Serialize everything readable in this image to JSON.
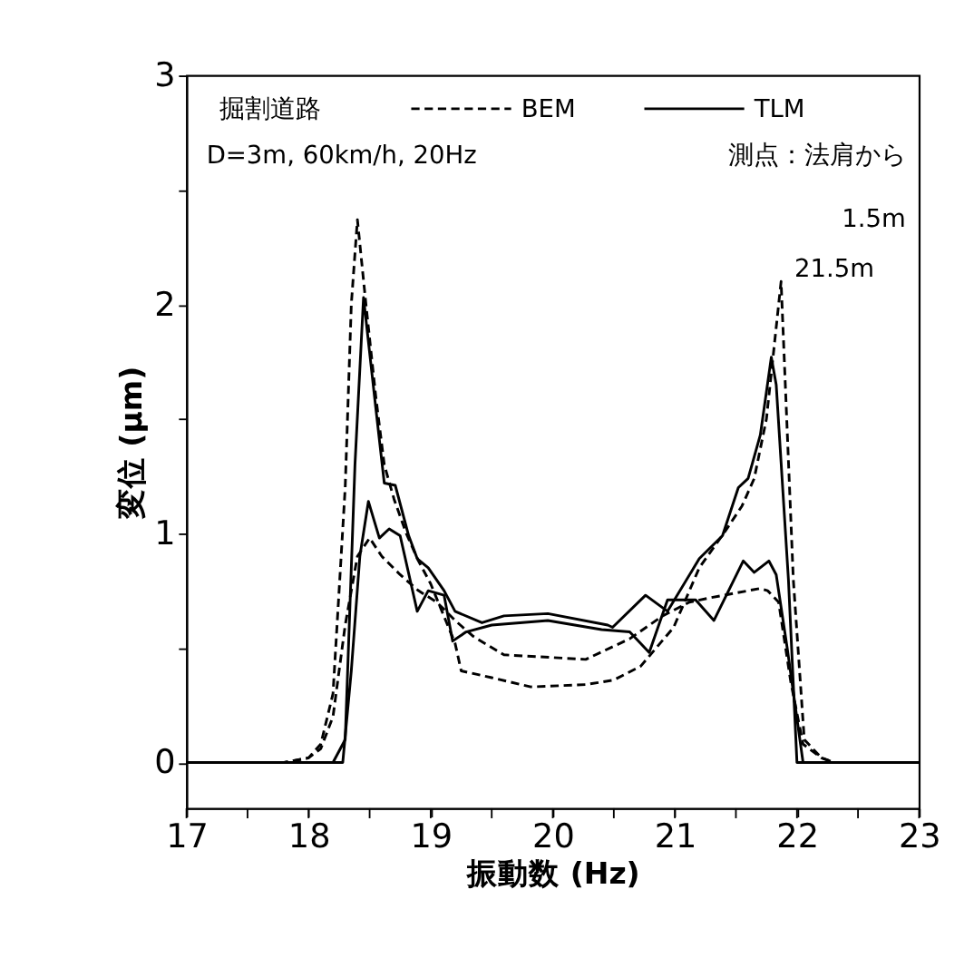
{
  "chart_data": {
    "type": "line",
    "xlabel": "振動数 (Hz)",
    "ylabel": "変位 (μm)",
    "legend_title": "掘割道路",
    "annotations": [
      "D=3m, 60km/h, 20Hz",
      "測点：法肩から",
      "1.5m",
      {
        "text": "21.5m",
        "x": 21.87,
        "y": 2.1
      }
    ],
    "xlim": [
      17,
      23
    ],
    "ylim": [
      -0.2,
      3
    ],
    "xticks": [
      17,
      {
        "value": 17.5,
        "label": null
      },
      18,
      {
        "value": 18.5,
        "label": null
      },
      19,
      {
        "value": 19.5,
        "label": null
      },
      20,
      {
        "value": 20.5,
        "label": null
      },
      21,
      {
        "value": 21.5,
        "label": null
      },
      22,
      {
        "value": 22.5,
        "label": null
      },
      23
    ],
    "yticks": [
      0,
      {
        "value": 0.5,
        "label": null
      },
      1,
      {
        "value": 1.5,
        "label": null
      },
      2,
      {
        "value": 2.5,
        "label": null
      },
      3
    ],
    "grid": false,
    "legend": "top",
    "marker": "none",
    "series": [
      {
        "name": "BEM",
        "color": "#000000",
        "line_style": "dashed",
        "x": [
          17,
          17.8,
          18.0,
          18.1,
          18.2,
          18.3,
          18.35,
          18.4,
          18.47,
          18.55,
          18.62,
          18.7,
          18.8,
          18.9,
          19.0,
          19.1,
          19.2,
          19.25,
          19.5,
          19.82,
          20.27,
          20.5,
          20.72,
          20.99,
          21.2,
          21.4,
          21.55,
          21.65,
          21.75,
          21.87,
          21.97,
          22.06,
          22.2,
          22.3,
          23
        ],
        "values": [
          0,
          0,
          0.02,
          0.08,
          0.3,
          1.2,
          2.0,
          2.37,
          2.0,
          1.6,
          1.3,
          1.15,
          1.0,
          0.88,
          0.78,
          0.65,
          0.52,
          0.4,
          0.37,
          0.33,
          0.34,
          0.36,
          0.42,
          0.59,
          0.85,
          1.0,
          1.12,
          1.24,
          1.5,
          2.1,
          0.8,
          0.1,
          0.02,
          0,
          0
        ]
      },
      {
        "color": "#000000",
        "line_style": "dashed",
        "x": [
          17,
          17.8,
          18.0,
          18.1,
          18.2,
          18.3,
          18.4,
          18.5,
          18.6,
          18.75,
          18.9,
          19.05,
          19.2,
          19.35,
          19.6,
          20.27,
          20.63,
          20.9,
          21.12,
          21.3,
          21.5,
          21.7,
          21.76,
          21.85,
          21.95,
          22.05,
          22.2,
          22.3,
          23
        ],
        "values": [
          0,
          0,
          0.02,
          0.06,
          0.2,
          0.6,
          0.9,
          0.98,
          0.9,
          0.82,
          0.75,
          0.7,
          0.62,
          0.55,
          0.47,
          0.45,
          0.54,
          0.64,
          0.7,
          0.72,
          0.74,
          0.76,
          0.75,
          0.7,
          0.35,
          0.08,
          0.02,
          0,
          0
        ]
      },
      {
        "name": "TLM",
        "color": "#000000",
        "line_style": "solid",
        "x": [
          17,
          18.2,
          18.3,
          18.38,
          18.45,
          18.55,
          18.62,
          18.71,
          18.82,
          18.89,
          18.98,
          19.11,
          19.2,
          19.42,
          19.6,
          19.96,
          20.45,
          20.49,
          20.76,
          20.94,
          21.2,
          21.39,
          21.52,
          21.6,
          21.7,
          21.79,
          21.83,
          21.93,
          22.0,
          23
        ],
        "values": [
          0,
          0,
          0.1,
          1.3,
          2.03,
          1.55,
          1.22,
          1.21,
          0.99,
          0.89,
          0.85,
          0.75,
          0.66,
          0.61,
          0.64,
          0.65,
          0.6,
          0.59,
          0.73,
          0.66,
          0.89,
          0.99,
          1.2,
          1.24,
          1.43,
          1.77,
          1.65,
          0.8,
          0,
          0
        ]
      },
      {
        "color": "#000000",
        "line_style": "solid",
        "x": [
          17,
          18.28,
          18.35,
          18.42,
          18.49,
          18.58,
          18.66,
          18.75,
          18.89,
          18.98,
          19.11,
          19.18,
          19.29,
          19.5,
          19.96,
          20.4,
          20.63,
          20.79,
          20.94,
          21.17,
          21.32,
          21.56,
          21.65,
          21.77,
          21.83,
          21.92,
          22.05,
          23
        ],
        "values": [
          0,
          0,
          0.4,
          0.9,
          1.14,
          0.98,
          1.02,
          0.99,
          0.66,
          0.75,
          0.73,
          0.53,
          0.57,
          0.6,
          0.62,
          0.58,
          0.57,
          0.48,
          0.71,
          0.71,
          0.62,
          0.88,
          0.83,
          0.88,
          0.82,
          0.5,
          0,
          0
        ]
      }
    ]
  }
}
